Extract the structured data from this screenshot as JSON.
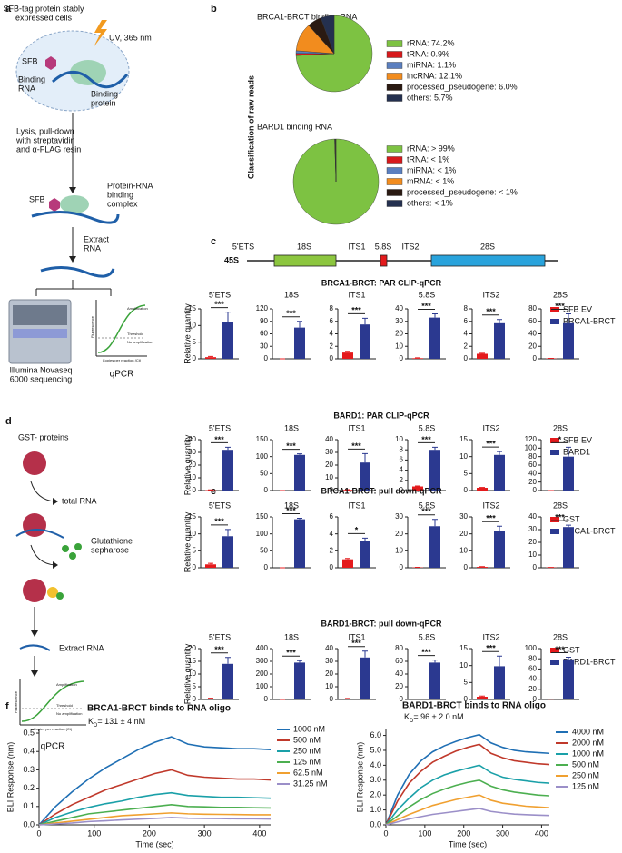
{
  "panel_labels": [
    "a",
    "b",
    "c",
    "d",
    "e",
    "f"
  ],
  "panel_a": {
    "cells_label": [
      "SFB-tag protein stably",
      "expressed cells"
    ],
    "uv": "UV, 365 nm",
    "tag": "SFB",
    "rna_label": [
      "Binding",
      "RNA"
    ],
    "protein_label": [
      "Binding",
      "protein"
    ],
    "lysis": [
      "Lysis, pull-down",
      "with streptavidin",
      "and α-FLAG resin"
    ],
    "tag2": "SFB",
    "complex": [
      "Protein-RNA",
      "binding",
      "complex"
    ],
    "extract": [
      "Extract",
      "RNA"
    ],
    "sequencing": [
      "Illumina Novaseq",
      "6000 sequencing"
    ],
    "qpcr": "qPCR",
    "plot_texts": [
      "Amplification",
      "Threshold",
      "No amplification",
      "Fluorescence",
      "Copies per reaction (Ct)"
    ]
  },
  "panel_b": {
    "ylabel": "Classification of raw reads"
  },
  "panel_c": {
    "precursor": "45S",
    "regions": [
      "5'ETS",
      "18S",
      "ITS1",
      "5.8S",
      "ITS2",
      "28S"
    ]
  },
  "panel_d": {
    "proteins": "GST- proteins",
    "rna": "total RNA",
    "resin": [
      "Glutathione",
      "sepharose"
    ],
    "extract": "Extract RNA",
    "qpcr": "qPCR",
    "plot_texts": [
      "Amplification",
      "Threshold",
      "No amplification",
      "Fluorescence",
      "Copies per reaction (Ct)"
    ]
  },
  "chart_data": [
    {
      "type": "pie",
      "title": "BRCA1-BRCT binding RNA",
      "categories": [
        "rRNA: 74.2%",
        "tRNA: 0.9%",
        "miRNA: 1.1%",
        "lncRNA: 12.1%",
        "processed_pseudogene: 6.0%",
        "others: 5.7%"
      ],
      "values": [
        74.2,
        0.9,
        1.1,
        12.1,
        6.0,
        5.7
      ],
      "colors": [
        "#7dc242",
        "#d7191c",
        "#5b7fbf",
        "#f28c1e",
        "#2a1a12",
        "#24304f"
      ]
    },
    {
      "type": "pie",
      "title": "BARD1 binding RNA",
      "categories": [
        "rRNA: > 99%",
        "tRNA: < 1%",
        "miRNA: < 1%",
        "mRNA: < 1%",
        "processed_pseudogene: < 1%",
        "others: < 1%"
      ],
      "values": [
        99.5,
        0.1,
        0.1,
        0.1,
        0.1,
        0.1
      ],
      "colors": [
        "#7dc242",
        "#d7191c",
        "#5b7fbf",
        "#f28c1e",
        "#2a1a12",
        "#24304f"
      ]
    },
    {
      "type": "bar",
      "title": "BRCA1-BRCT: PAR CLIP-qPCR",
      "ylabel": "Relative quantity",
      "series": [
        {
          "name": "SFB EV",
          "color": "#e41a1c"
        },
        {
          "name": "BRCA1-BRCT",
          "color": "#2b3990"
        }
      ],
      "panels": [
        {
          "title": "5'ETS",
          "values": [
            0.5,
            11
          ],
          "errors": [
            0.2,
            3
          ],
          "significance": "***",
          "ylim": [
            0,
            15
          ],
          "yticks": [
            0,
            5,
            10,
            15
          ]
        },
        {
          "title": "18S",
          "values": [
            0,
            75
          ],
          "errors": [
            0,
            15
          ],
          "significance": "***",
          "ylim": [
            0,
            120
          ],
          "yticks": [
            0,
            30,
            60,
            90,
            120
          ]
        },
        {
          "title": "ITS1",
          "values": [
            1,
            5.5
          ],
          "errors": [
            0.2,
            1
          ],
          "significance": "***",
          "ylim": [
            0,
            8
          ],
          "yticks": [
            0,
            2,
            4,
            6,
            8
          ]
        },
        {
          "title": "5.8S",
          "values": [
            0.5,
            33
          ],
          "errors": [
            0.3,
            3
          ],
          "significance": "***",
          "ylim": [
            0,
            40
          ],
          "yticks": [
            0,
            10,
            20,
            30,
            40
          ]
        },
        {
          "title": "ITS2",
          "values": [
            0.8,
            5.7
          ],
          "errors": [
            0.1,
            0.6
          ],
          "significance": "***",
          "ylim": [
            0,
            8
          ],
          "yticks": [
            0,
            2,
            4,
            6,
            8
          ]
        },
        {
          "title": "28S",
          "values": [
            0.5,
            57
          ],
          "errors": [
            0.2,
            15
          ],
          "significance": "***",
          "ylim": [
            0,
            80
          ],
          "yticks": [
            0,
            20,
            40,
            60,
            80
          ]
        }
      ]
    },
    {
      "type": "bar",
      "title": "BARD1: PAR CLIP-qPCR",
      "ylabel": "Relative quantity",
      "series": [
        {
          "name": "SFB EV",
          "color": "#e41a1c"
        },
        {
          "name": "BARD1",
          "color": "#2b3990"
        }
      ],
      "panels": [
        {
          "title": "5'ETS",
          "values": [
            0.3,
            32
          ],
          "errors": [
            0.2,
            2
          ],
          "significance": "***",
          "ylim": [
            0,
            40
          ],
          "yticks": [
            0,
            10,
            20,
            30,
            40
          ]
        },
        {
          "title": "18S",
          "values": [
            0,
            105
          ],
          "errors": [
            0,
            3
          ],
          "significance": "***",
          "ylim": [
            0,
            150
          ],
          "yticks": [
            0,
            50,
            100,
            150
          ]
        },
        {
          "title": "ITS1",
          "values": [
            0.5,
            22
          ],
          "errors": [
            0.2,
            7
          ],
          "significance": "***",
          "ylim": [
            0,
            40
          ],
          "yticks": [
            0,
            10,
            20,
            30,
            40
          ]
        },
        {
          "title": "5.8S",
          "values": [
            0.8,
            8
          ],
          "errors": [
            0.1,
            0.5
          ],
          "significance": "***",
          "ylim": [
            0,
            10
          ],
          "yticks": [
            0,
            2,
            4,
            6,
            8,
            10
          ]
        },
        {
          "title": "ITS2",
          "values": [
            0.8,
            10.5
          ],
          "errors": [
            0.1,
            1
          ],
          "significance": "***",
          "ylim": [
            0,
            15
          ],
          "yticks": [
            0,
            5,
            10,
            15
          ]
        },
        {
          "title": "28S",
          "values": [
            0,
            80
          ],
          "errors": [
            0,
            22
          ],
          "significance": "*",
          "ylim": [
            0,
            120
          ],
          "yticks": [
            0,
            20,
            40,
            60,
            80,
            100,
            120
          ]
        }
      ]
    },
    {
      "type": "bar",
      "title": "BRCA1-BRCT: pull down-qPCR",
      "ylabel": "Relative quantity",
      "series": [
        {
          "name": "GST",
          "color": "#e41a1c"
        },
        {
          "name": "BRCA1-BRCT",
          "color": "#2b3990"
        }
      ],
      "panels": [
        {
          "title": "5'ETS",
          "values": [
            1,
            9.3
          ],
          "errors": [
            0.3,
            2
          ],
          "significance": "***",
          "ylim": [
            0,
            15
          ],
          "yticks": [
            0,
            5,
            10,
            15
          ]
        },
        {
          "title": "18S",
          "values": [
            0,
            143
          ],
          "errors": [
            0,
            3
          ],
          "significance": "***",
          "ylim": [
            0,
            150
          ],
          "yticks": [
            0,
            50,
            100,
            150
          ]
        },
        {
          "title": "ITS1",
          "values": [
            1,
            3.2
          ],
          "errors": [
            0.1,
            0.3
          ],
          "significance": "*",
          "ylim": [
            0,
            6
          ],
          "yticks": [
            0,
            2,
            4,
            6
          ]
        },
        {
          "title": "5.8S",
          "values": [
            0.2,
            24.5
          ],
          "errors": [
            0.1,
            4
          ],
          "significance": "***",
          "ylim": [
            0,
            30
          ],
          "yticks": [
            0,
            10,
            20,
            30
          ]
        },
        {
          "title": "ITS2",
          "values": [
            0.5,
            21.5
          ],
          "errors": [
            0.2,
            3
          ],
          "significance": "***",
          "ylim": [
            0,
            30
          ],
          "yticks": [
            0,
            10,
            20,
            30
          ]
        },
        {
          "title": "28S",
          "values": [
            0.2,
            32
          ],
          "errors": [
            0.1,
            1.5
          ],
          "significance": "***",
          "ylim": [
            0,
            40
          ],
          "yticks": [
            0,
            10,
            20,
            30,
            40
          ]
        }
      ]
    },
    {
      "type": "bar",
      "title": "BARD1-BRCT: pull down-qPCR",
      "ylabel": "Relative quantity",
      "series": [
        {
          "name": "GST",
          "color": "#e41a1c"
        },
        {
          "name": "BARD1-BRCT",
          "color": "#2b3990"
        }
      ],
      "panels": [
        {
          "title": "5'ETS",
          "values": [
            0.3,
            14
          ],
          "errors": [
            0.2,
            2.5
          ],
          "significance": "***",
          "ylim": [
            0,
            20
          ],
          "yticks": [
            0,
            5,
            10,
            15,
            20
          ]
        },
        {
          "title": "18S",
          "values": [
            0,
            290
          ],
          "errors": [
            0,
            15
          ],
          "significance": "***",
          "ylim": [
            0,
            400
          ],
          "yticks": [
            0,
            100,
            200,
            300,
            400
          ]
        },
        {
          "title": "ITS1",
          "values": [
            0.5,
            33
          ],
          "errors": [
            0.3,
            5
          ],
          "significance": "***",
          "ylim": [
            0,
            40
          ],
          "yticks": [
            0,
            10,
            20,
            30,
            40
          ]
        },
        {
          "title": "5.8S",
          "values": [
            0.5,
            58
          ],
          "errors": [
            0.2,
            4
          ],
          "significance": "***",
          "ylim": [
            0,
            80
          ],
          "yticks": [
            0,
            20,
            40,
            60,
            80
          ]
        },
        {
          "title": "ITS2",
          "values": [
            0.8,
            9.8
          ],
          "errors": [
            0.2,
            3
          ],
          "significance": "***",
          "ylim": [
            0,
            15
          ],
          "yticks": [
            0,
            5,
            10,
            15
          ]
        },
        {
          "title": "28S",
          "values": [
            0.5,
            79
          ],
          "errors": [
            0.2,
            4
          ],
          "significance": "***",
          "ylim": [
            0,
            100
          ],
          "yticks": [
            0,
            20,
            40,
            60,
            80,
            100
          ]
        }
      ]
    },
    {
      "type": "line",
      "title": "BRCA1-BRCT binds to RNA oligo",
      "kd": {
        "symbol": "K",
        "subscript": "D",
        "text": "= 131 ± 4 nM"
      },
      "xlabel": "Time (sec)",
      "ylabel": "BLI Response (nm)",
      "x": [
        0,
        30,
        60,
        90,
        120,
        150,
        180,
        210,
        240,
        270,
        300,
        330,
        360,
        390,
        420
      ],
      "xlim": [
        0,
        420
      ],
      "xticks": [
        0,
        100,
        200,
        300,
        400
      ],
      "ylim": [
        0,
        0.52
      ],
      "yticks": [
        {
          "value": 0,
          "label": "0.0"
        },
        0.1,
        0.2,
        0.3,
        0.4,
        0.5
      ],
      "series": [
        {
          "name": "1000 nM",
          "color": "#1f6fb4",
          "values": [
            0,
            0.1,
            0.18,
            0.25,
            0.31,
            0.36,
            0.41,
            0.45,
            0.48,
            0.44,
            0.425,
            0.42,
            0.415,
            0.415,
            0.41
          ]
        },
        {
          "name": "500 nM",
          "color": "#c0392b",
          "values": [
            0,
            0.06,
            0.11,
            0.15,
            0.19,
            0.22,
            0.25,
            0.28,
            0.3,
            0.27,
            0.26,
            0.255,
            0.25,
            0.25,
            0.245
          ]
        },
        {
          "name": "250 nM",
          "color": "#1aa0a8",
          "values": [
            0,
            0.04,
            0.07,
            0.095,
            0.115,
            0.13,
            0.15,
            0.165,
            0.175,
            0.16,
            0.155,
            0.15,
            0.15,
            0.148,
            0.145
          ]
        },
        {
          "name": "125 nM",
          "color": "#4caf50",
          "values": [
            0,
            0.02,
            0.04,
            0.06,
            0.07,
            0.08,
            0.09,
            0.1,
            0.11,
            0.1,
            0.098,
            0.095,
            0.095,
            0.093,
            0.092
          ]
        },
        {
          "name": "62.5 nM",
          "color": "#f0a030",
          "values": [
            0,
            0.01,
            0.02,
            0.03,
            0.04,
            0.05,
            0.055,
            0.06,
            0.065,
            0.06,
            0.058,
            0.057,
            0.056,
            0.055,
            0.055
          ]
        },
        {
          "name": "31.25 nM",
          "color": "#9b8fc8",
          "values": [
            0,
            0.005,
            0.01,
            0.018,
            0.022,
            0.027,
            0.031,
            0.035,
            0.04,
            0.036,
            0.035,
            0.034,
            0.033,
            0.033,
            0.032
          ]
        }
      ]
    },
    {
      "type": "line",
      "title": "BARD1-BRCT binds to RNA oligo",
      "kd": {
        "symbol": "K",
        "subscript": "D",
        "text": "= 96 ± 2.0 nM"
      },
      "xlabel": "Time (sec)",
      "ylabel": "BLI Response (nm)",
      "x": [
        0,
        30,
        60,
        90,
        120,
        150,
        180,
        210,
        240,
        270,
        300,
        330,
        360,
        390,
        420
      ],
      "xlim": [
        0,
        420
      ],
      "xticks": [
        0,
        100,
        200,
        300,
        400
      ],
      "ylim": [
        0,
        6.4
      ],
      "yticks": [
        {
          "value": 0,
          "label": "0.0"
        },
        {
          "value": 1,
          "label": "1.0"
        },
        {
          "value": 2,
          "label": "2.0"
        },
        {
          "value": 3,
          "label": "3.0"
        },
        {
          "value": 4,
          "label": "4.0"
        },
        {
          "value": 5,
          "label": "5.0"
        },
        {
          "value": 6,
          "label": "6.0"
        }
      ],
      "series": [
        {
          "name": "4000 nM",
          "color": "#1f6fb4",
          "values": [
            0,
            2.0,
            3.4,
            4.3,
            4.9,
            5.3,
            5.6,
            5.85,
            6.05,
            5.5,
            5.2,
            5.0,
            4.9,
            4.85,
            4.8
          ]
        },
        {
          "name": "2000 nM",
          "color": "#c0392b",
          "values": [
            0,
            1.6,
            2.8,
            3.6,
            4.2,
            4.6,
            4.95,
            5.2,
            5.4,
            4.8,
            4.5,
            4.3,
            4.2,
            4.1,
            4.05
          ]
        },
        {
          "name": "1000 nM",
          "color": "#1aa0a8",
          "values": [
            0,
            1.0,
            1.8,
            2.5,
            3.0,
            3.35,
            3.6,
            3.8,
            4.0,
            3.5,
            3.2,
            3.05,
            2.95,
            2.85,
            2.8
          ]
        },
        {
          "name": "500 nM",
          "color": "#4caf50",
          "values": [
            0,
            0.6,
            1.2,
            1.7,
            2.1,
            2.4,
            2.65,
            2.85,
            3.0,
            2.6,
            2.35,
            2.2,
            2.1,
            2.0,
            1.95
          ]
        },
        {
          "name": "250 nM",
          "color": "#f0a030",
          "values": [
            0,
            0.35,
            0.7,
            1.0,
            1.3,
            1.5,
            1.7,
            1.85,
            2.0,
            1.65,
            1.45,
            1.35,
            1.25,
            1.2,
            1.15
          ]
        },
        {
          "name": "125 nM",
          "color": "#9b8fc8",
          "values": [
            0,
            0.2,
            0.4,
            0.55,
            0.7,
            0.8,
            0.9,
            1.0,
            1.1,
            0.9,
            0.8,
            0.72,
            0.68,
            0.65,
            0.63
          ]
        }
      ]
    }
  ]
}
